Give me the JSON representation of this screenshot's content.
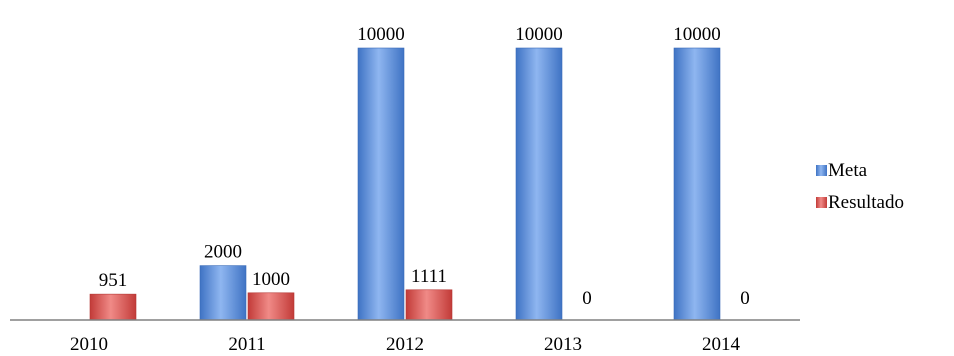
{
  "chart_data": {
    "type": "bar",
    "categories": [
      "2010",
      "2011",
      "2012",
      "2013",
      "2014"
    ],
    "series": [
      {
        "name": "Meta",
        "values": [
          null,
          2000,
          10000,
          10000,
          10000
        ],
        "labels": [
          "",
          "2000",
          "10000",
          "10000",
          "10000"
        ],
        "color": "#5b8fd6"
      },
      {
        "name": "Resultado",
        "values": [
          951,
          1000,
          1111,
          0,
          0
        ],
        "labels": [
          "951",
          "1000",
          "1111",
          "0",
          "0"
        ],
        "color": "#d9534f"
      }
    ],
    "ylim": [
      0,
      10000
    ],
    "grid": false,
    "legend_position": "right",
    "title": "",
    "xlabel": "",
    "ylabel": ""
  }
}
